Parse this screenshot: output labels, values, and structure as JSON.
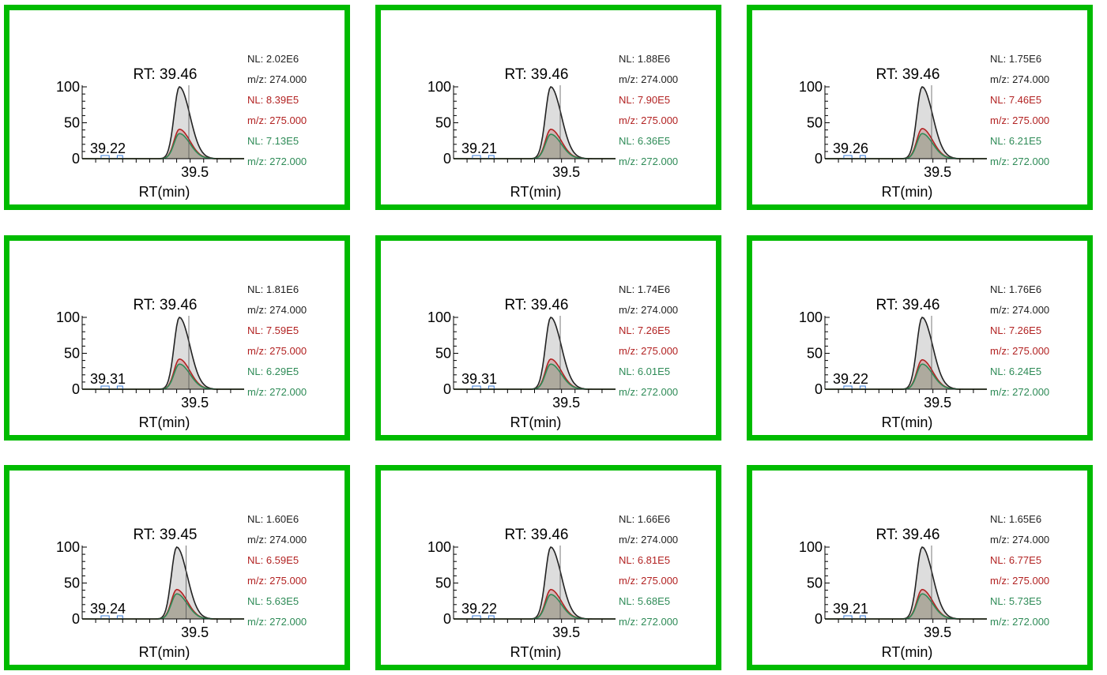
{
  "chart_data": [
    {
      "type": "line",
      "rt_label": "RT: 39.46",
      "small_label": "39.22",
      "xtick": "39.5",
      "xlabel": "RT(min)",
      "yticks": [
        "100",
        "50",
        "0"
      ],
      "ylim": [
        0,
        100
      ],
      "xlim": [
        39.1,
        39.7
      ],
      "apex_rt": 39.46,
      "series": [
        {
          "name": "NL: 2.02E6",
          "mz": "m/z: 274.000",
          "color": "#222222",
          "peak": 100
        },
        {
          "name": "NL: 8.39E5",
          "mz": "m/z: 275.000",
          "color": "#b22222",
          "peak": 41
        },
        {
          "name": "NL: 7.13E5",
          "mz": "m/z: 272.000",
          "color": "#2e8b57",
          "peak": 35
        }
      ]
    },
    {
      "type": "line",
      "rt_label": "RT: 39.46",
      "small_label": "39.21",
      "xtick": "39.5",
      "xlabel": "RT(min)",
      "yticks": [
        "100",
        "50",
        "0"
      ],
      "ylim": [
        0,
        100
      ],
      "xlim": [
        39.1,
        39.7
      ],
      "apex_rt": 39.46,
      "series": [
        {
          "name": "NL: 1.88E6",
          "mz": "m/z: 274.000",
          "color": "#222222",
          "peak": 100
        },
        {
          "name": "NL: 7.90E5",
          "mz": "m/z: 275.000",
          "color": "#b22222",
          "peak": 41
        },
        {
          "name": "NL: 6.36E5",
          "mz": "m/z: 272.000",
          "color": "#2e8b57",
          "peak": 34
        }
      ]
    },
    {
      "type": "line",
      "rt_label": "RT: 39.46",
      "small_label": "39.26",
      "xtick": "39.5",
      "xlabel": "RT(min)",
      "yticks": [
        "100",
        "50",
        "0"
      ],
      "ylim": [
        0,
        100
      ],
      "xlim": [
        39.1,
        39.7
      ],
      "apex_rt": 39.46,
      "series": [
        {
          "name": "NL: 1.75E6",
          "mz": "m/z: 274.000",
          "color": "#222222",
          "peak": 100
        },
        {
          "name": "NL: 7.46E5",
          "mz": "m/z: 275.000",
          "color": "#b22222",
          "peak": 42
        },
        {
          "name": "NL: 6.21E5",
          "mz": "m/z: 272.000",
          "color": "#2e8b57",
          "peak": 35
        }
      ]
    },
    {
      "type": "line",
      "rt_label": "RT: 39.46",
      "small_label": "39.31",
      "xtick": "39.5",
      "xlabel": "RT(min)",
      "yticks": [
        "100",
        "50",
        "0"
      ],
      "ylim": [
        0,
        100
      ],
      "xlim": [
        39.1,
        39.7
      ],
      "apex_rt": 39.46,
      "series": [
        {
          "name": "NL: 1.81E6",
          "mz": "m/z: 274.000",
          "color": "#222222",
          "peak": 100
        },
        {
          "name": "NL: 7.59E5",
          "mz": "m/z: 275.000",
          "color": "#b22222",
          "peak": 42
        },
        {
          "name": "NL: 6.29E5",
          "mz": "m/z: 272.000",
          "color": "#2e8b57",
          "peak": 35
        }
      ]
    },
    {
      "type": "line",
      "rt_label": "RT: 39.46",
      "small_label": "39.31",
      "xtick": "39.5",
      "xlabel": "RT(min)",
      "yticks": [
        "100",
        "50",
        "0"
      ],
      "ylim": [
        0,
        100
      ],
      "xlim": [
        39.1,
        39.7
      ],
      "apex_rt": 39.46,
      "series": [
        {
          "name": "NL: 1.74E6",
          "mz": "m/z: 274.000",
          "color": "#222222",
          "peak": 100
        },
        {
          "name": "NL: 7.26E5",
          "mz": "m/z: 275.000",
          "color": "#b22222",
          "peak": 42
        },
        {
          "name": "NL: 6.01E5",
          "mz": "m/z: 272.000",
          "color": "#2e8b57",
          "peak": 35
        }
      ]
    },
    {
      "type": "line",
      "rt_label": "RT: 39.46",
      "small_label": "39.22",
      "xtick": "39.5",
      "xlabel": "RT(min)",
      "yticks": [
        "100",
        "50",
        "0"
      ],
      "ylim": [
        0,
        100
      ],
      "xlim": [
        39.1,
        39.7
      ],
      "apex_rt": 39.46,
      "series": [
        {
          "name": "NL: 1.76E6",
          "mz": "m/z: 274.000",
          "color": "#222222",
          "peak": 100
        },
        {
          "name": "NL: 7.26E5",
          "mz": "m/z: 275.000",
          "color": "#b22222",
          "peak": 41
        },
        {
          "name": "NL: 6.24E5",
          "mz": "m/z: 272.000",
          "color": "#2e8b57",
          "peak": 35
        }
      ]
    },
    {
      "type": "line",
      "rt_label": "RT: 39.45",
      "small_label": "39.24",
      "xtick": "39.5",
      "xlabel": "RT(min)",
      "yticks": [
        "100",
        "50",
        "0"
      ],
      "ylim": [
        0,
        100
      ],
      "xlim": [
        39.1,
        39.7
      ],
      "apex_rt": 39.45,
      "series": [
        {
          "name": "NL: 1.60E6",
          "mz": "m/z: 274.000",
          "color": "#222222",
          "peak": 100
        },
        {
          "name": "NL: 6.59E5",
          "mz": "m/z: 275.000",
          "color": "#b22222",
          "peak": 41
        },
        {
          "name": "NL: 5.63E5",
          "mz": "m/z: 272.000",
          "color": "#2e8b57",
          "peak": 35
        }
      ]
    },
    {
      "type": "line",
      "rt_label": "RT: 39.46",
      "small_label": "39.22",
      "xtick": "39.5",
      "xlabel": "RT(min)",
      "yticks": [
        "100",
        "50",
        "0"
      ],
      "ylim": [
        0,
        100
      ],
      "xlim": [
        39.1,
        39.7
      ],
      "apex_rt": 39.46,
      "series": [
        {
          "name": "NL: 1.66E6",
          "mz": "m/z: 274.000",
          "color": "#222222",
          "peak": 100
        },
        {
          "name": "NL: 6.81E5",
          "mz": "m/z: 275.000",
          "color": "#b22222",
          "peak": 41
        },
        {
          "name": "NL: 5.68E5",
          "mz": "m/z: 272.000",
          "color": "#2e8b57",
          "peak": 34
        }
      ]
    },
    {
      "type": "line",
      "rt_label": "RT: 39.46",
      "small_label": "39.21",
      "xtick": "39.5",
      "xlabel": "RT(min)",
      "yticks": [
        "100",
        "50",
        "0"
      ],
      "ylim": [
        0,
        100
      ],
      "xlim": [
        39.1,
        39.7
      ],
      "apex_rt": 39.46,
      "series": [
        {
          "name": "NL: 1.65E6",
          "mz": "m/z: 274.000",
          "color": "#222222",
          "peak": 100
        },
        {
          "name": "NL: 6.77E5",
          "mz": "m/z: 275.000",
          "color": "#b22222",
          "peak": 41
        },
        {
          "name": "NL: 5.73E5",
          "mz": "m/z: 272.000",
          "color": "#2e8b57",
          "peak": 35
        }
      ]
    }
  ],
  "colors": {
    "panel_border": "#00bb00",
    "peak_fill": "#d9d9d9",
    "marker": "#3a7bd5"
  }
}
